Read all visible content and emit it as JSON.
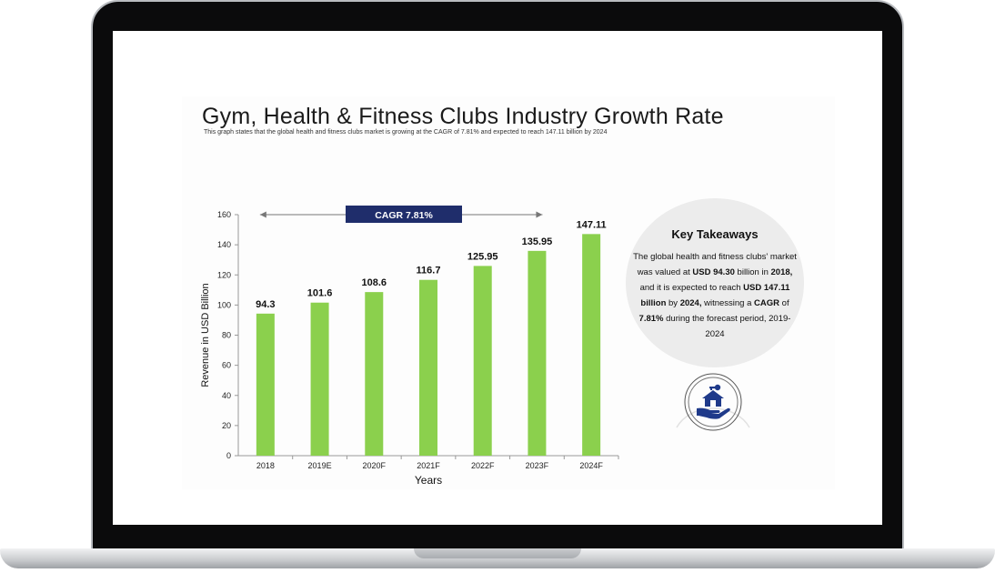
{
  "slide": {
    "title": "Gym, Health & Fitness Clubs Industry Growth Rate",
    "subtitle": "This graph states that the global health and fitness clubs market is growing at the CAGR of 7.81%  and expected to reach 147.11 billion by 2024"
  },
  "chart_data": {
    "type": "bar",
    "categories": [
      "2018",
      "2019E",
      "2020F",
      "2021F",
      "2022F",
      "2023F",
      "2024F"
    ],
    "values": [
      94.3,
      101.6,
      108.6,
      116.7,
      125.95,
      135.95,
      147.11
    ],
    "value_labels": [
      "94.3",
      "101.6",
      "108.6",
      "116.7",
      "125.95",
      "135.95",
      "147.11"
    ],
    "xlabel": "Years",
    "ylabel": "Revenue in USD Billion",
    "ylim": [
      0,
      160
    ],
    "yticks": [
      0,
      20,
      40,
      60,
      80,
      100,
      120,
      140,
      160
    ],
    "grid": false,
    "annotation": "CAGR 7.81%",
    "bar_color": "#8bd04d",
    "annotation_color": "#1f2d6b"
  },
  "takeaways": {
    "title": "Key Takeaways",
    "t1": "The global  health and fitness clubs' market was valued at ",
    "b1": "USD 94.30",
    "t2": " billion in ",
    "b2": "2018,",
    "t3": " and it is expected to reach ",
    "b3": "USD 147.11 billion",
    "t4": " by ",
    "b4": "2024,",
    "t5": " witnessing a ",
    "b5": "CAGR",
    "t6": " of ",
    "b6": "7.81%",
    "t7": " during the forecast period, 2019-2024"
  },
  "icon": {
    "name": "house-in-hand-icon",
    "color": "#1f3a8a"
  }
}
